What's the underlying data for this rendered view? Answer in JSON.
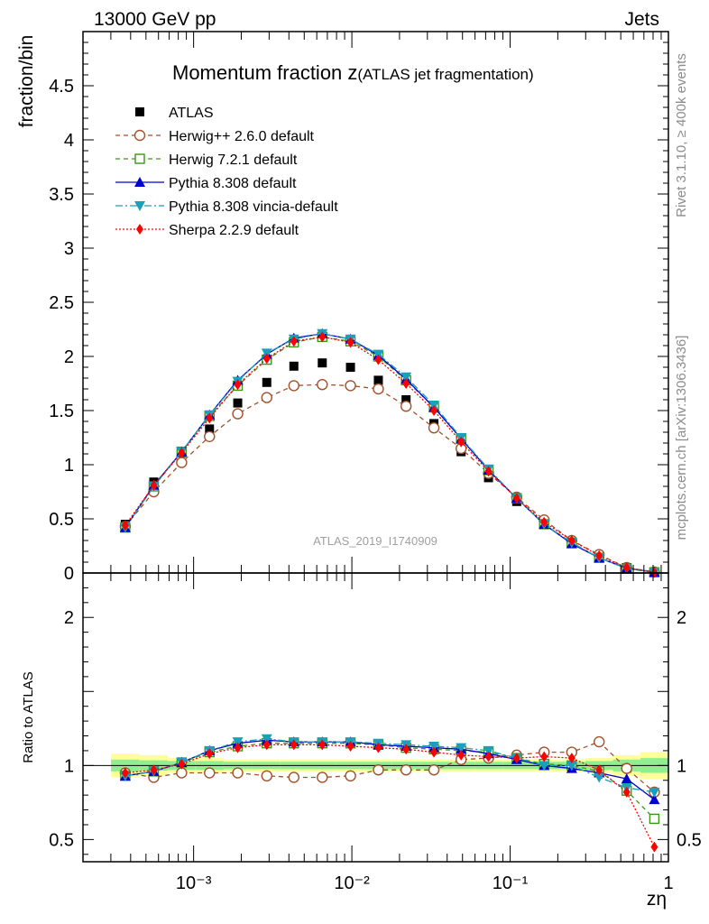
{
  "header": {
    "left": "13000 GeV pp",
    "right": "Jets"
  },
  "side_labels": {
    "rivet": "Rivet 3.1.10, ≥ 400k events",
    "mcplots": "mcplots.cern.ch [arXiv:1306.3436]"
  },
  "watermark": "ATLAS_2019_I1740909",
  "colors": {
    "atlas": "#000000",
    "herwig_pp": "#a0522d",
    "herwig7": "#3c9618",
    "pythia": "#0000cd",
    "vincia": "#1c9fba",
    "sherpa": "#ff0000",
    "band_inner": "#90ee90",
    "band_outer": "#ffff99"
  },
  "chart_data": [
    {
      "type": "line",
      "title": "Momentum fraction z",
      "title_suffix": "(ATLAS jet fragmentation)",
      "ylabel": "fraction/bin",
      "xscale": "log",
      "xlim": [
        0.0002,
        1.0
      ],
      "ylim": [
        0,
        5.0
      ],
      "yticks": [
        "0",
        "0.5",
        "1",
        "1.5",
        "2",
        "2.5",
        "3",
        "3.5",
        "4",
        "4.5"
      ],
      "legend_position": "top-left",
      "x": [
        0.00037,
        0.00056,
        0.00084,
        0.00126,
        0.0019,
        0.0029,
        0.0043,
        0.0065,
        0.0098,
        0.0147,
        0.022,
        0.033,
        0.049,
        0.073,
        0.11,
        0.164,
        0.245,
        0.365,
        0.545,
        0.815
      ],
      "series": [
        {
          "name": "ATLAS",
          "style": "data",
          "values": [
            0.45,
            0.84,
            1.11,
            1.33,
            1.57,
            1.76,
            1.91,
            1.94,
            1.9,
            1.78,
            1.6,
            1.38,
            1.12,
            0.88,
            0.66,
            0.45,
            0.28,
            0.15,
            0.05,
            0.01
          ]
        },
        {
          "name": "Herwig++ 2.6.0 default",
          "style": "herwig_pp",
          "values": [
            0.43,
            0.75,
            1.02,
            1.26,
            1.47,
            1.62,
            1.73,
            1.74,
            1.73,
            1.7,
            1.54,
            1.34,
            1.15,
            0.92,
            0.7,
            0.49,
            0.3,
            0.17,
            0.05,
            0.01
          ]
        },
        {
          "name": "Herwig 7.2.1 default",
          "style": "herwig7",
          "values": [
            0.42,
            0.8,
            1.12,
            1.45,
            1.73,
            1.97,
            2.13,
            2.18,
            2.14,
            2.0,
            1.78,
            1.53,
            1.24,
            0.95,
            0.69,
            0.45,
            0.28,
            0.14,
            0.04,
            0.006
          ]
        },
        {
          "name": "Pythia 8.308 default",
          "style": "pythia",
          "values": [
            0.42,
            0.81,
            1.12,
            1.46,
            1.78,
            2.02,
            2.17,
            2.21,
            2.16,
            2.01,
            1.79,
            1.53,
            1.24,
            0.95,
            0.69,
            0.45,
            0.27,
            0.14,
            0.045,
            0.008
          ]
        },
        {
          "name": "Pythia 8.308 vincia-default",
          "style": "vincia",
          "values": [
            0.42,
            0.8,
            1.12,
            1.46,
            1.77,
            2.03,
            2.16,
            2.21,
            2.16,
            2.02,
            1.81,
            1.55,
            1.25,
            0.96,
            0.69,
            0.45,
            0.28,
            0.14,
            0.04,
            0.008
          ]
        },
        {
          "name": "Sherpa 2.2.9 default",
          "style": "sherpa",
          "values": [
            0.44,
            0.81,
            1.11,
            1.43,
            1.74,
            1.98,
            2.14,
            2.18,
            2.13,
            1.97,
            1.75,
            1.5,
            1.21,
            0.94,
            0.69,
            0.47,
            0.3,
            0.16,
            0.05,
            0.004
          ]
        }
      ]
    },
    {
      "type": "line",
      "ylabel": "Ratio to ATLAS",
      "xlabel": "zη",
      "xscale": "log",
      "xlim": [
        0.0002,
        1.0
      ],
      "ylim": [
        0.35,
        2.3
      ],
      "yticks": [
        "0.5",
        "1",
        "2"
      ],
      "xticks": [
        "10⁻³",
        "10⁻²",
        "10⁻¹",
        "1"
      ],
      "x": [
        0.00037,
        0.00056,
        0.00084,
        0.00126,
        0.0019,
        0.0029,
        0.0043,
        0.0065,
        0.0098,
        0.0147,
        0.022,
        0.033,
        0.049,
        0.073,
        0.11,
        0.164,
        0.245,
        0.365,
        0.545,
        0.815
      ],
      "band_outer": [
        0.08,
        0.07,
        0.05,
        0.05,
        0.04,
        0.04,
        0.04,
        0.04,
        0.04,
        0.04,
        0.04,
        0.04,
        0.04,
        0.04,
        0.04,
        0.04,
        0.04,
        0.05,
        0.07,
        0.09
      ],
      "band_inner": [
        0.04,
        0.035,
        0.03,
        0.03,
        0.025,
        0.025,
        0.025,
        0.025,
        0.025,
        0.025,
        0.025,
        0.025,
        0.025,
        0.025,
        0.025,
        0.025,
        0.025,
        0.03,
        0.04,
        0.05
      ],
      "series": [
        {
          "name": "Herwig++ 2.6.0 default",
          "style": "herwig_pp",
          "values": [
            0.95,
            0.92,
            0.95,
            0.95,
            0.95,
            0.93,
            0.92,
            0.92,
            0.93,
            0.97,
            0.97,
            0.97,
            1.04,
            1.05,
            1.07,
            1.09,
            1.09,
            1.16,
            0.98,
            0.82
          ]
        },
        {
          "name": "Herwig 7.2.1 default",
          "style": "herwig7",
          "values": [
            0.93,
            0.96,
            1.02,
            1.09,
            1.13,
            1.15,
            1.15,
            1.15,
            1.15,
            1.14,
            1.12,
            1.11,
            1.1,
            1.09,
            1.05,
            1.01,
            1.0,
            0.96,
            0.83,
            0.64
          ]
        },
        {
          "name": "Pythia 8.308 default",
          "style": "pythia",
          "values": [
            0.93,
            0.96,
            1.02,
            1.1,
            1.15,
            1.17,
            1.16,
            1.16,
            1.16,
            1.14,
            1.13,
            1.12,
            1.11,
            1.08,
            1.04,
            1.0,
            0.98,
            0.95,
            0.91,
            0.77
          ]
        },
        {
          "name": "Pythia 8.308 vincia-default",
          "style": "vincia",
          "values": [
            0.93,
            0.96,
            1.02,
            1.1,
            1.16,
            1.18,
            1.16,
            1.16,
            1.16,
            1.15,
            1.14,
            1.13,
            1.12,
            1.1,
            1.05,
            1.0,
            1.0,
            0.92,
            0.85,
            0.82
          ]
        },
        {
          "name": "Sherpa 2.2.9 default",
          "style": "sherpa",
          "values": [
            0.95,
            0.97,
            1.01,
            1.08,
            1.12,
            1.14,
            1.14,
            1.14,
            1.13,
            1.12,
            1.11,
            1.09,
            1.07,
            1.06,
            1.05,
            1.06,
            1.05,
            0.97,
            0.82,
            0.45
          ]
        }
      ]
    }
  ]
}
